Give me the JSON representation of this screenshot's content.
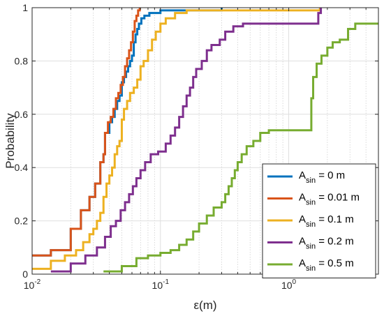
{
  "chart_data": {
    "type": "line",
    "line_style": "step",
    "xlabel": "ε(m)",
    "ylabel": "Probability",
    "xscale": "log",
    "xlim": [
      0.01,
      5
    ],
    "ylim": [
      0,
      1
    ],
    "grid": true,
    "minor_grid_x": true,
    "legend_position": "lower-right",
    "x_ticks": [
      {
        "value": 0.01,
        "base": "10",
        "exp": "-2"
      },
      {
        "value": 0.1,
        "base": "10",
        "exp": "-1"
      },
      {
        "value": 1,
        "base": "10",
        "exp": "0"
      }
    ],
    "y_ticks": [
      {
        "value": 0,
        "label": "0"
      },
      {
        "value": 0.2,
        "label": "0.2"
      },
      {
        "value": 0.4,
        "label": "0.4"
      },
      {
        "value": 0.6,
        "label": "0.6"
      },
      {
        "value": 0.8,
        "label": "0.8"
      },
      {
        "value": 1,
        "label": "1"
      }
    ],
    "series": [
      {
        "legend_main": "A",
        "legend_sub": "sin",
        "legend_rest": " = 0 m",
        "color": "#0072BD",
        "points": [
          [
            0.01,
            0.07
          ],
          [
            0.014,
            0.09
          ],
          [
            0.02,
            0.17
          ],
          [
            0.024,
            0.24
          ],
          [
            0.028,
            0.29
          ],
          [
            0.031,
            0.34
          ],
          [
            0.034,
            0.42
          ],
          [
            0.036,
            0.45
          ],
          [
            0.037,
            0.53
          ],
          [
            0.04,
            0.57
          ],
          [
            0.042,
            0.59
          ],
          [
            0.044,
            0.62
          ],
          [
            0.046,
            0.65
          ],
          [
            0.048,
            0.67
          ],
          [
            0.05,
            0.72
          ],
          [
            0.052,
            0.74
          ],
          [
            0.054,
            0.76
          ],
          [
            0.056,
            0.78
          ],
          [
            0.058,
            0.8
          ],
          [
            0.06,
            0.82
          ],
          [
            0.062,
            0.87
          ],
          [
            0.064,
            0.9
          ],
          [
            0.066,
            0.92
          ],
          [
            0.068,
            0.94
          ],
          [
            0.071,
            0.96
          ],
          [
            0.075,
            0.97
          ],
          [
            0.082,
            0.98
          ],
          [
            0.1,
            0.99
          ],
          [
            0.27,
            0.99
          ],
          [
            0.3,
            1
          ]
        ]
      },
      {
        "legend_main": "A",
        "legend_sub": "sin",
        "legend_rest": " = 0.01 m",
        "color": "#D95319",
        "points": [
          [
            0.01,
            0.07
          ],
          [
            0.014,
            0.09
          ],
          [
            0.02,
            0.17
          ],
          [
            0.024,
            0.24
          ],
          [
            0.028,
            0.29
          ],
          [
            0.031,
            0.34
          ],
          [
            0.034,
            0.42
          ],
          [
            0.036,
            0.45
          ],
          [
            0.037,
            0.53
          ],
          [
            0.039,
            0.57
          ],
          [
            0.041,
            0.59
          ],
          [
            0.043,
            0.62
          ],
          [
            0.045,
            0.66
          ],
          [
            0.047,
            0.68
          ],
          [
            0.049,
            0.71
          ],
          [
            0.051,
            0.74
          ],
          [
            0.053,
            0.78
          ],
          [
            0.055,
            0.81
          ],
          [
            0.057,
            0.84
          ],
          [
            0.059,
            0.87
          ],
          [
            0.061,
            0.91
          ],
          [
            0.063,
            0.95
          ],
          [
            0.065,
            0.97
          ],
          [
            0.067,
            0.99
          ],
          [
            0.069,
            1
          ]
        ]
      },
      {
        "legend_main": "A",
        "legend_sub": "sin",
        "legend_rest": " = 0.1 m",
        "color": "#EDB120",
        "points": [
          [
            0.01,
            0.02
          ],
          [
            0.014,
            0.05
          ],
          [
            0.018,
            0.07
          ],
          [
            0.022,
            0.09
          ],
          [
            0.025,
            0.12
          ],
          [
            0.028,
            0.15
          ],
          [
            0.03,
            0.17
          ],
          [
            0.032,
            0.2
          ],
          [
            0.034,
            0.23
          ],
          [
            0.036,
            0.29
          ],
          [
            0.038,
            0.34
          ],
          [
            0.04,
            0.37
          ],
          [
            0.042,
            0.4
          ],
          [
            0.044,
            0.45
          ],
          [
            0.046,
            0.48
          ],
          [
            0.048,
            0.5
          ],
          [
            0.05,
            0.58
          ],
          [
            0.052,
            0.62
          ],
          [
            0.055,
            0.65
          ],
          [
            0.058,
            0.68
          ],
          [
            0.062,
            0.7
          ],
          [
            0.066,
            0.73
          ],
          [
            0.07,
            0.78
          ],
          [
            0.074,
            0.8
          ],
          [
            0.08,
            0.84
          ],
          [
            0.086,
            0.88
          ],
          [
            0.092,
            0.91
          ],
          [
            0.1,
            0.94
          ],
          [
            0.11,
            0.96
          ],
          [
            0.13,
            0.98
          ],
          [
            0.16,
            0.99
          ],
          [
            0.5,
            0.99
          ],
          [
            1.65,
            0.99
          ],
          [
            1.75,
            1
          ]
        ]
      },
      {
        "legend_main": "A",
        "legend_sub": "sin",
        "legend_rest": " = 0.2 m",
        "color": "#7E2F8E",
        "points": [
          [
            0.014,
            0.01
          ],
          [
            0.02,
            0.04
          ],
          [
            0.026,
            0.07
          ],
          [
            0.032,
            0.1
          ],
          [
            0.037,
            0.14
          ],
          [
            0.041,
            0.18
          ],
          [
            0.045,
            0.2
          ],
          [
            0.049,
            0.24
          ],
          [
            0.053,
            0.27
          ],
          [
            0.057,
            0.3
          ],
          [
            0.061,
            0.33
          ],
          [
            0.065,
            0.36
          ],
          [
            0.07,
            0.39
          ],
          [
            0.076,
            0.42
          ],
          [
            0.084,
            0.45
          ],
          [
            0.096,
            0.46
          ],
          [
            0.11,
            0.49
          ],
          [
            0.12,
            0.52
          ],
          [
            0.13,
            0.55
          ],
          [
            0.14,
            0.59
          ],
          [
            0.15,
            0.63
          ],
          [
            0.16,
            0.67
          ],
          [
            0.17,
            0.7
          ],
          [
            0.18,
            0.74
          ],
          [
            0.19,
            0.77
          ],
          [
            0.21,
            0.8
          ],
          [
            0.23,
            0.84
          ],
          [
            0.25,
            0.86
          ],
          [
            0.29,
            0.88
          ],
          [
            0.32,
            0.91
          ],
          [
            0.37,
            0.93
          ],
          [
            0.44,
            0.94
          ],
          [
            1.6,
            0.94
          ],
          [
            1.7,
            0.98
          ],
          [
            1.78,
            1
          ]
        ]
      },
      {
        "legend_main": "A",
        "legend_sub": "sin",
        "legend_rest": " = 0.5 m",
        "color": "#77AC30",
        "points": [
          [
            0.036,
            0.01
          ],
          [
            0.05,
            0.03
          ],
          [
            0.065,
            0.06
          ],
          [
            0.08,
            0.07
          ],
          [
            0.1,
            0.08
          ],
          [
            0.12,
            0.09
          ],
          [
            0.14,
            0.11
          ],
          [
            0.16,
            0.13
          ],
          [
            0.18,
            0.16
          ],
          [
            0.2,
            0.19
          ],
          [
            0.23,
            0.22
          ],
          [
            0.26,
            0.25
          ],
          [
            0.3,
            0.27
          ],
          [
            0.32,
            0.3
          ],
          [
            0.34,
            0.33
          ],
          [
            0.36,
            0.36
          ],
          [
            0.38,
            0.39
          ],
          [
            0.4,
            0.42
          ],
          [
            0.43,
            0.45
          ],
          [
            0.47,
            0.48
          ],
          [
            0.53,
            0.5
          ],
          [
            0.6,
            0.53
          ],
          [
            0.7,
            0.54
          ],
          [
            1.45,
            0.54
          ],
          [
            1.5,
            0.66
          ],
          [
            1.55,
            0.74
          ],
          [
            1.65,
            0.79
          ],
          [
            1.8,
            0.82
          ],
          [
            2.0,
            0.85
          ],
          [
            2.2,
            0.87
          ],
          [
            2.5,
            0.88
          ],
          [
            2.9,
            0.92
          ],
          [
            3.3,
            0.94
          ],
          [
            5,
            0.94
          ]
        ]
      }
    ]
  }
}
